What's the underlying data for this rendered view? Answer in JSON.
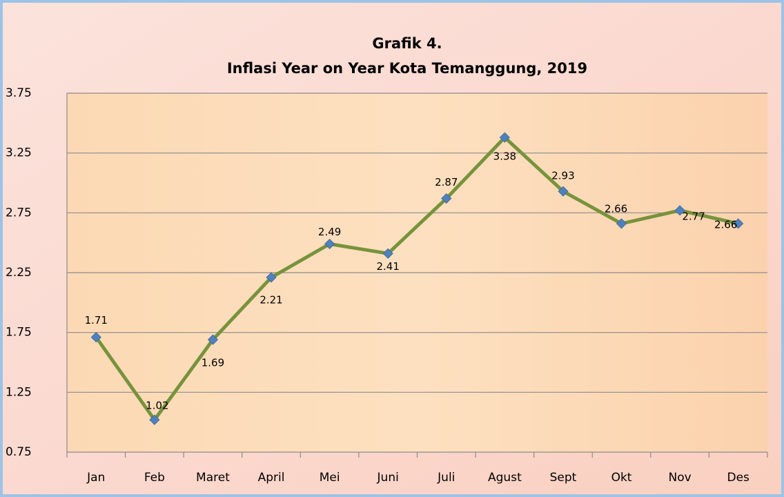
{
  "chart_data": {
    "type": "line",
    "title": "Grafik 4.",
    "subtitle": "Inflasi Year on Year Kota Temanggung, 2019",
    "categories": [
      "Jan",
      "Feb",
      "Maret",
      "April",
      "Mei",
      "Juni",
      "Juli",
      "Agust",
      "Sept",
      "Okt",
      "Nov",
      "Des"
    ],
    "series": [
      {
        "name": "Inflasi",
        "color": "#77933c",
        "marker_color": "#4f81bd",
        "values": [
          1.71,
          1.02,
          1.69,
          2.21,
          2.49,
          2.41,
          2.87,
          3.38,
          2.93,
          2.66,
          2.77,
          2.66
        ]
      }
    ],
    "ylim": [
      0.75,
      3.75
    ],
    "yticks": [
      0.75,
      1.25,
      1.75,
      2.25,
      2.75,
      3.25,
      3.75
    ],
    "grid": true
  }
}
